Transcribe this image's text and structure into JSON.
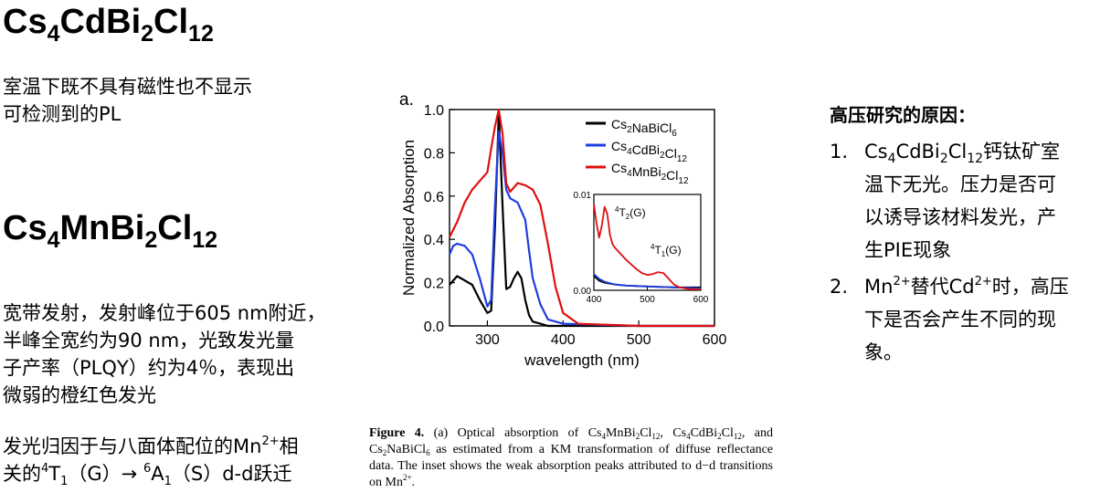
{
  "left": {
    "title1": {
      "base1": "Cs",
      "sub1": "4",
      "base2": "CdBi",
      "sub2": "2",
      "base3": "Cl",
      "sub3": "12"
    },
    "para1": [
      "室温下既不具有磁性也不显示",
      "可检测到的PL"
    ],
    "title2": {
      "base1": "Cs",
      "sub1": "4",
      "base2": "MnBi",
      "sub2": "2",
      "base3": "Cl",
      "sub3": "12"
    },
    "para2": [
      "宽带发射，发射峰位于605 nm附近，",
      "半峰全宽约为90 nm，光致发光量",
      "子产率（PLQY）约为4％，表现出",
      "微弱的橙红色发光"
    ],
    "para3": {
      "l1_a": "发光归因于与八面体配位的Mn",
      "l1_sup": "2+",
      "l1_b": "相",
      "l2_a": "关的",
      "l2_sup1": "4",
      "l2_b": "T",
      "l2_sub1": "1",
      "l2_c": "（G）→ ",
      "l2_sup2": "6",
      "l2_d": "A",
      "l2_sub2": "1",
      "l2_e": "（S）d-d跃迁"
    }
  },
  "figure": {
    "panel_label": "a.",
    "caption": {
      "bold": "Figure 4.",
      "t1": " (a) Optical absorption of Cs",
      "s1": "4",
      "t2": "MnBi",
      "s2": "2",
      "t3": "Cl",
      "s3": "12",
      "t4": ", Cs",
      "s4": "4",
      "t5": "CdBi",
      "s5": "2",
      "t6": "Cl",
      "s6": "12",
      "t7": ", and Cs",
      "s7": "2",
      "t8": "NaBiCl",
      "s8": "6",
      "t9": " as estimated from a KM transformation of diffuse reflectance data. The inset shows the weak absorption peaks attributed to d−d transitions on Mn",
      "sup": "2+",
      "t10": "."
    }
  },
  "chart_data": {
    "type": "line",
    "xlabel": "wavelength (nm)",
    "ylabel": "Normalized Absorption",
    "xlim": [
      250,
      600
    ],
    "ylim": [
      0.0,
      1.0
    ],
    "xticks": [
      "300",
      "400",
      "500",
      "600"
    ],
    "yticks": [
      "0.0",
      "0.2",
      "0.4",
      "0.6",
      "0.8",
      "1.0"
    ],
    "legend_position": "top-right",
    "colors": {
      "Cs2NaBiCl6": "#000000",
      "Cs4CdBi2Cl12": "#1f3de0",
      "Cs4MnBi2Cl12": "#e01010"
    },
    "series": [
      {
        "name": "Cs2NaBiCl6",
        "x": [
          250,
          260,
          270,
          280,
          290,
          300,
          305,
          310,
          315,
          320,
          325,
          330,
          335,
          340,
          345,
          350,
          355,
          360,
          370,
          380,
          400,
          500,
          600
        ],
        "y": [
          0.19,
          0.23,
          0.21,
          0.19,
          0.12,
          0.06,
          0.07,
          0.45,
          0.98,
          0.56,
          0.17,
          0.18,
          0.22,
          0.25,
          0.22,
          0.12,
          0.05,
          0.02,
          0.01,
          0.0,
          0.0,
          0.0,
          0.0
        ]
      },
      {
        "name": "Cs4CdBi2Cl12",
        "x": [
          250,
          255,
          260,
          270,
          280,
          290,
          300,
          305,
          310,
          315,
          320,
          325,
          330,
          340,
          350,
          355,
          360,
          370,
          380,
          400,
          500,
          600
        ],
        "y": [
          0.33,
          0.37,
          0.38,
          0.37,
          0.33,
          0.22,
          0.09,
          0.12,
          0.55,
          0.9,
          0.8,
          0.63,
          0.59,
          0.57,
          0.49,
          0.35,
          0.22,
          0.1,
          0.03,
          0.01,
          0.0,
          0.0
        ]
      },
      {
        "name": "Cs4MnBi2Cl12",
        "x": [
          250,
          260,
          270,
          280,
          290,
          300,
          305,
          310,
          315,
          320,
          325,
          330,
          340,
          350,
          360,
          370,
          380,
          390,
          400,
          420,
          500,
          600
        ],
        "y": [
          0.41,
          0.48,
          0.57,
          0.63,
          0.67,
          0.71,
          0.82,
          0.92,
          1.0,
          0.89,
          0.66,
          0.62,
          0.66,
          0.65,
          0.63,
          0.56,
          0.38,
          0.18,
          0.06,
          0.01,
          0.0,
          0.0
        ]
      }
    ],
    "inset": {
      "xlim": [
        400,
        600
      ],
      "ylim": [
        0.0,
        0.01
      ],
      "xticks": [
        "400",
        "500",
        "600"
      ],
      "yticks": [
        "0.00",
        "0.01"
      ],
      "annotations": [
        {
          "sup": "4",
          "base": "T",
          "sub": "2",
          "tail": "(G)"
        },
        {
          "sup": "4",
          "base": "T",
          "sub": "1",
          "tail": "(G)"
        }
      ],
      "series": [
        {
          "name": "Cs2NaBiCl6",
          "x": [
            400,
            410,
            420,
            440,
            460,
            500,
            550,
            600
          ],
          "y": [
            0.0015,
            0.001,
            0.0008,
            0.0006,
            0.0005,
            0.0004,
            0.0003,
            0.0003
          ]
        },
        {
          "name": "Cs4CdBi2Cl12",
          "x": [
            400,
            410,
            420,
            440,
            460,
            500,
            550,
            600
          ],
          "y": [
            0.0017,
            0.0012,
            0.0009,
            0.0006,
            0.0005,
            0.0004,
            0.0003,
            0.0002
          ]
        },
        {
          "name": "Cs4MnBi2Cl12",
          "x": [
            400,
            405,
            410,
            415,
            420,
            425,
            430,
            435,
            440,
            450,
            460,
            470,
            480,
            490,
            500,
            510,
            520,
            530,
            540,
            550,
            560,
            580,
            600
          ],
          "y": [
            0.009,
            0.007,
            0.0055,
            0.0068,
            0.0087,
            0.008,
            0.0058,
            0.0048,
            0.0044,
            0.0038,
            0.0032,
            0.0027,
            0.0022,
            0.0018,
            0.0016,
            0.0017,
            0.0019,
            0.0018,
            0.0012,
            0.0006,
            0.0003,
            0.0001,
            0.0001
          ]
        }
      ]
    }
  },
  "right": {
    "heading": "高压研究的原因：",
    "item1": {
      "num": "1.",
      "l1_a": "Cs",
      "l1_s1": "4",
      "l1_b": "CdBi",
      "l1_s2": "2",
      "l1_c": "Cl",
      "l1_s3": "12",
      "l1_d": "钙钛矿室",
      "l2": "温下无光。压力是否可",
      "l3": "以诱导该材料发光，产",
      "l4": "生PIE现象"
    },
    "item2": {
      "num": "2.",
      "l1_a": "Mn",
      "l1_sup1": "2+",
      "l1_b": "替代Cd",
      "l1_sup2": "2+",
      "l1_c": "时，高压",
      "l2": "下是否会产生不同的现",
      "l3": "象。"
    }
  }
}
